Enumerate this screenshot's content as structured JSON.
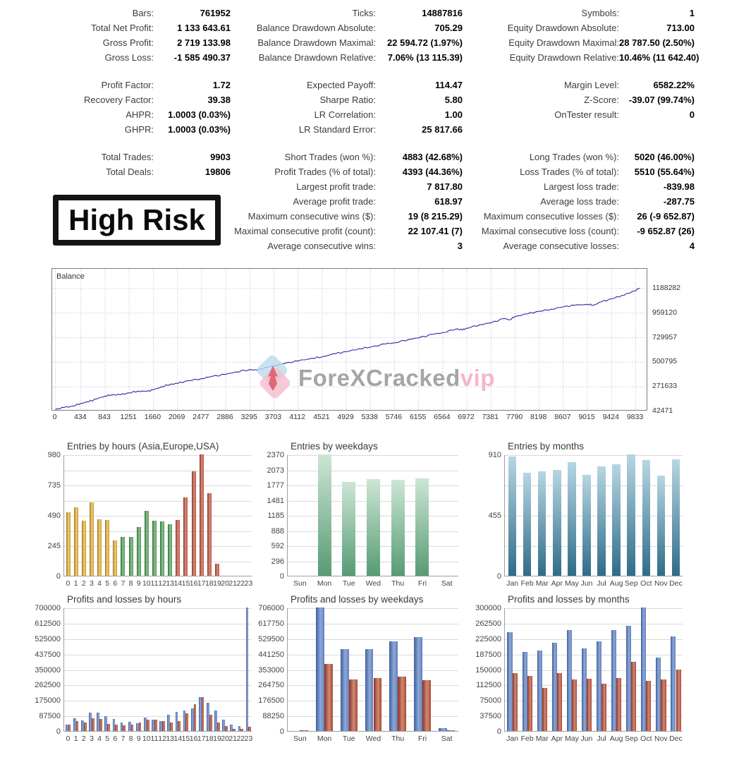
{
  "badge": {
    "text": "High Risk"
  },
  "watermark": {
    "brand": "ForeXCracked",
    "suffix": "vip"
  },
  "stats": {
    "rows": [
      [
        "Bars:",
        "761952",
        "Ticks:",
        "14887816",
        "Symbols:",
        "1"
      ],
      [
        "Total Net Profit:",
        "1 133 643.61",
        "Balance Drawdown Absolute:",
        "705.29",
        "Equity Drawdown Absolute:",
        "713.00"
      ],
      [
        "Gross Profit:",
        "2 719 133.98",
        "Balance Drawdown Maximal:",
        "22 594.72 (1.97%)",
        "Equity Drawdown Maximal:",
        "28 787.50 (2.50%)"
      ],
      [
        "Gross Loss:",
        "-1 585 490.37",
        "Balance Drawdown Relative:",
        "7.06% (13 115.39)",
        "Equity Drawdown Relative:",
        "10.46% (11 642.40)"
      ],
      null,
      [
        "Profit Factor:",
        "1.72",
        "Expected Payoff:",
        "114.47",
        "Margin Level:",
        "6582.22%"
      ],
      [
        "Recovery Factor:",
        "39.38",
        "Sharpe Ratio:",
        "5.80",
        "Z-Score:",
        "-39.07 (99.74%)"
      ],
      [
        "AHPR:",
        "1.0003 (0.03%)",
        "LR Correlation:",
        "1.00",
        "OnTester result:",
        "0"
      ],
      [
        "GHPR:",
        "1.0003 (0.03%)",
        "LR Standard Error:",
        "25 817.66",
        "",
        ""
      ],
      null,
      [
        "Total Trades:",
        "9903",
        "Short Trades (won %):",
        "4883 (42.68%)",
        "Long Trades (won %):",
        "5020 (46.00%)"
      ],
      [
        "Total Deals:",
        "19806",
        "Profit Trades (% of total):",
        "4393 (44.36%)",
        "Loss Trades (% of total):",
        "5510 (55.64%)"
      ],
      [
        "",
        "",
        "Largest profit trade:",
        "7 817.80",
        "Largest loss trade:",
        "-839.98"
      ],
      [
        "",
        "",
        "Average profit trade:",
        "618.97",
        "Average loss trade:",
        "-287.75"
      ],
      [
        "",
        "",
        "Maximum consecutive wins ($):",
        "19 (8 215.29)",
        "Maximum consecutive losses ($):",
        "26 (-9 652.87)"
      ],
      [
        "",
        "",
        "Maximal consecutive profit (count):",
        "22 107.41 (7)",
        "Maximal consecutive loss (count):",
        "-9 652.87 (26)"
      ],
      [
        "",
        "",
        "Average consecutive wins:",
        "3",
        "Average consecutive losses:",
        "4"
      ]
    ]
  },
  "colors": {
    "gold": {
      "dir": "h",
      "stops": [
        "#a87518",
        "#f2d07e",
        "#c9952f"
      ]
    },
    "green": {
      "dir": "h",
      "stops": [
        "#2f6e35",
        "#8cc492",
        "#4f9555"
      ]
    },
    "brick": {
      "dir": "h",
      "stops": [
        "#8c3326",
        "#d98f7d",
        "#b05442"
      ]
    },
    "weekday_green": {
      "dir": "v",
      "stops": [
        "#cde6d4",
        "#569b74"
      ]
    },
    "month_teal": {
      "dir": "v",
      "stops": [
        "#b7d6e3",
        "#2f6c88"
      ]
    },
    "profit_blue": {
      "dir": "h",
      "stops": [
        "#3f5f9f",
        "#8ea9d6",
        "#6080bf"
      ]
    },
    "loss_red": {
      "dir": "h",
      "stops": [
        "#8c3222",
        "#d08a75",
        "#a84a35"
      ]
    },
    "balance_line": "#2929a3",
    "grid_dotted": "#b9bdd6",
    "watermark_gray": "#9c9c9c",
    "watermark_pink": "#f7aec9"
  },
  "chart_data": [
    {
      "key": "balance",
      "type": "line",
      "title": "Balance",
      "legend_label": "Balance",
      "x_ticks": [
        0,
        434,
        843,
        1251,
        1660,
        2069,
        2477,
        2886,
        3295,
        3703,
        4112,
        4521,
        4929,
        5338,
        5746,
        6155,
        6564,
        6972,
        7381,
        7790,
        8198,
        8607,
        9015,
        9424,
        9833
      ],
      "y_ticks": [
        1188282,
        959120,
        729957,
        500795,
        271633,
        42471
      ],
      "xlim": [
        0,
        10030
      ],
      "anchors": [
        [
          0,
          60000
        ],
        [
          150,
          78000
        ],
        [
          300,
          92000
        ],
        [
          434,
          118000
        ],
        [
          560,
          132000
        ],
        [
          700,
          158000
        ],
        [
          843,
          186000
        ],
        [
          950,
          196000
        ],
        [
          1100,
          197000
        ],
        [
          1251,
          215000
        ],
        [
          1400,
          232000
        ],
        [
          1550,
          228000
        ],
        [
          1660,
          243000
        ],
        [
          1800,
          272000
        ],
        [
          1950,
          295000
        ],
        [
          2069,
          302000
        ],
        [
          2250,
          328000
        ],
        [
          2477,
          348000
        ],
        [
          2650,
          368000
        ],
        [
          2886,
          387000
        ],
        [
          3050,
          410000
        ],
        [
          3295,
          432000
        ],
        [
          3420,
          426000
        ],
        [
          3600,
          455000
        ],
        [
          3703,
          468000
        ],
        [
          3900,
          492000
        ],
        [
          4112,
          512000
        ],
        [
          4350,
          538000
        ],
        [
          4521,
          552000
        ],
        [
          4750,
          582000
        ],
        [
          4929,
          598000
        ],
        [
          5150,
          628000
        ],
        [
          5338,
          642000
        ],
        [
          5600,
          672000
        ],
        [
          5746,
          682000
        ],
        [
          6000,
          716000
        ],
        [
          6155,
          728000
        ],
        [
          6400,
          762000
        ],
        [
          6564,
          778000
        ],
        [
          6800,
          812000
        ],
        [
          6900,
          802000
        ],
        [
          6972,
          818000
        ],
        [
          7200,
          852000
        ],
        [
          7381,
          868000
        ],
        [
          7600,
          908000
        ],
        [
          7700,
          898000
        ],
        [
          7790,
          928000
        ],
        [
          8000,
          952000
        ],
        [
          8198,
          976000
        ],
        [
          8400,
          996000
        ],
        [
          8607,
          1018000
        ],
        [
          8800,
          1032000
        ],
        [
          9015,
          1042000
        ],
        [
          9120,
          1034000
        ],
        [
          9250,
          1064000
        ],
        [
          9424,
          1092000
        ],
        [
          9600,
          1124000
        ],
        [
          9750,
          1152000
        ],
        [
          9903,
          1190000
        ]
      ]
    },
    {
      "key": "entries_hours",
      "type": "bar",
      "title": "Entries by hours (Asia,Europe,USA)",
      "categories": [
        "0",
        "1",
        "2",
        "3",
        "4",
        "5",
        "6",
        "7",
        "8",
        "9",
        "10",
        "11",
        "12",
        "13",
        "14",
        "15",
        "16",
        "17",
        "18",
        "19",
        "20",
        "21",
        "22",
        "23"
      ],
      "values": [
        515,
        553,
        444,
        591,
        458,
        449,
        285,
        311,
        311,
        396,
        525,
        444,
        440,
        417,
        449,
        633,
        842,
        980,
        667,
        98,
        0,
        0,
        0,
        0
      ],
      "bar_colors": [
        "gold",
        "gold",
        "gold",
        "gold",
        "gold",
        "gold",
        "gold",
        "green",
        "green",
        "green",
        "green",
        "green",
        "green",
        "green",
        "brick",
        "brick",
        "brick",
        "brick",
        "brick",
        "brick",
        "brick",
        "brick",
        "brick",
        "brick"
      ],
      "ylim": [
        0,
        980
      ],
      "yticks": [
        [
          0,
          "0"
        ],
        [
          245,
          "245"
        ],
        [
          490,
          "490"
        ],
        [
          735,
          "735"
        ],
        [
          980,
          "980"
        ]
      ],
      "grid_ticks": [
        0,
        122.5,
        245,
        367.5,
        490,
        612.5,
        735,
        857.5,
        980
      ]
    },
    {
      "key": "entries_weekdays",
      "type": "bar",
      "title": "Entries by weekdays",
      "categories": [
        "Sun",
        "Mon",
        "Tue",
        "Wed",
        "Thu",
        "Fri",
        "Sat"
      ],
      "values": [
        0,
        2370,
        1840,
        1890,
        1875,
        1900,
        0
      ],
      "bar_colors": [
        "weekday_green",
        "weekday_green",
        "weekday_green",
        "weekday_green",
        "weekday_green",
        "weekday_green",
        "weekday_green"
      ],
      "ylim": [
        0,
        2370
      ],
      "yticks": [
        [
          0,
          "0"
        ],
        [
          296,
          "296"
        ],
        [
          592,
          "592"
        ],
        [
          888,
          "888"
        ],
        [
          1185,
          "1185"
        ],
        [
          1481,
          "1481"
        ],
        [
          1777,
          "1777"
        ],
        [
          2073,
          "2073"
        ],
        [
          2370,
          "2370"
        ]
      ],
      "grid_ticks": [
        0,
        296,
        592,
        888,
        1185,
        1481,
        1777,
        2073,
        2370
      ]
    },
    {
      "key": "entries_months",
      "type": "bar",
      "title": "Entries by months",
      "categories": [
        "Jan",
        "Feb",
        "Mar",
        "Apr",
        "May",
        "Jun",
        "Jul",
        "Aug",
        "Sep",
        "Oct",
        "Nov",
        "Dec"
      ],
      "values": [
        895,
        775,
        785,
        795,
        850,
        755,
        820,
        835,
        910,
        870,
        750,
        875
      ],
      "bar_colors": [
        "month_teal",
        "month_teal",
        "month_teal",
        "month_teal",
        "month_teal",
        "month_teal",
        "month_teal",
        "month_teal",
        "month_teal",
        "month_teal",
        "month_teal",
        "month_teal"
      ],
      "ylim": [
        0,
        910
      ],
      "yticks": [
        [
          0,
          "0"
        ],
        [
          455,
          "455"
        ],
        [
          910,
          "910"
        ]
      ],
      "grid_ticks": [
        0,
        227.5,
        455,
        682.5,
        910
      ]
    },
    {
      "key": "pl_hours",
      "type": "grouped_bar",
      "title": "Profits and losses by hours",
      "categories": [
        "0",
        "1",
        "2",
        "3",
        "4",
        "5",
        "6",
        "7",
        "8",
        "9",
        "10",
        "11",
        "12",
        "13",
        "14",
        "15",
        "16",
        "17",
        "18",
        "19",
        "20",
        "21",
        "22",
        "23"
      ],
      "series": [
        {
          "name": "profit",
          "color": "profit_blue",
          "values": [
            38000,
            72000,
            62000,
            104000,
            106000,
            84000,
            70000,
            50000,
            52000,
            44000,
            78000,
            64000,
            56000,
            92000,
            108000,
            118000,
            128000,
            192000,
            160000,
            118000,
            65000,
            38000,
            28000,
            700000
          ]
        },
        {
          "name": "loss",
          "color": "loss_red",
          "values": [
            38000,
            56000,
            50000,
            71000,
            69000,
            42000,
            36000,
            33000,
            38000,
            48000,
            66000,
            63000,
            58000,
            50000,
            58000,
            100000,
            152000,
            192000,
            92000,
            48000,
            28000,
            13000,
            13000,
            25000
          ]
        }
      ],
      "ylim": [
        0,
        700000
      ],
      "yticks": [
        [
          0,
          "0"
        ],
        [
          87500,
          "87500"
        ],
        [
          175000,
          "175000"
        ],
        [
          262500,
          "262500"
        ],
        [
          350000,
          "350000"
        ],
        [
          437500,
          "437500"
        ],
        [
          525000,
          "525000"
        ],
        [
          612500,
          "612500"
        ],
        [
          700000,
          "700000"
        ]
      ],
      "grid_ticks": [
        0,
        87500,
        175000,
        262500,
        350000,
        437500,
        525000,
        612500,
        700000
      ]
    },
    {
      "key": "pl_weekdays",
      "type": "grouped_bar",
      "title": "Profits and losses by weekdays",
      "categories": [
        "Sun",
        "Mon",
        "Tue",
        "Wed",
        "Thu",
        "Fri",
        "Sat"
      ],
      "series": [
        {
          "name": "profit",
          "color": "profit_blue",
          "values": [
            2000,
            706000,
            470000,
            470000,
            512000,
            535000,
            15000
          ]
        },
        {
          "name": "loss",
          "color": "loss_red",
          "values": [
            5000,
            385000,
            295000,
            303000,
            310000,
            292000,
            3000
          ]
        }
      ],
      "ylim": [
        0,
        706000
      ],
      "yticks": [
        [
          0,
          "0"
        ],
        [
          88250,
          "88250"
        ],
        [
          176500,
          "176500"
        ],
        [
          264750,
          "264750"
        ],
        [
          353000,
          "353000"
        ],
        [
          441250,
          "441250"
        ],
        [
          529500,
          "529500"
        ],
        [
          617750,
          "617750"
        ],
        [
          706000,
          "706000"
        ]
      ],
      "grid_ticks": [
        0,
        88250,
        176500,
        264750,
        353000,
        441250,
        529500,
        617750,
        706000
      ]
    },
    {
      "key": "pl_months",
      "type": "grouped_bar",
      "title": "Profits and losses by months",
      "categories": [
        "Jan",
        "Feb",
        "Mar",
        "Apr",
        "May",
        "Jun",
        "Jul",
        "Aug",
        "Sep",
        "Oct",
        "Nov",
        "Dec"
      ],
      "series": [
        {
          "name": "profit",
          "color": "profit_blue",
          "values": [
            240000,
            192000,
            196000,
            215000,
            246000,
            200000,
            218000,
            245000,
            255000,
            300000,
            178000,
            230000
          ]
        },
        {
          "name": "loss",
          "color": "loss_red",
          "values": [
            140000,
            134000,
            105000,
            141000,
            126000,
            127000,
            115000,
            129000,
            168000,
            122000,
            125000,
            150000
          ]
        }
      ],
      "ylim": [
        0,
        300000
      ],
      "yticks": [
        [
          0,
          "0"
        ],
        [
          37500,
          "37500"
        ],
        [
          75000,
          "75000"
        ],
        [
          112500,
          "112500"
        ],
        [
          150000,
          "150000"
        ],
        [
          187500,
          "187500"
        ],
        [
          225000,
          "225000"
        ],
        [
          262500,
          "262500"
        ],
        [
          300000,
          "300000"
        ]
      ],
      "grid_ticks": [
        0,
        37500,
        75000,
        112500,
        150000,
        187500,
        225000,
        262500,
        300000
      ]
    }
  ]
}
